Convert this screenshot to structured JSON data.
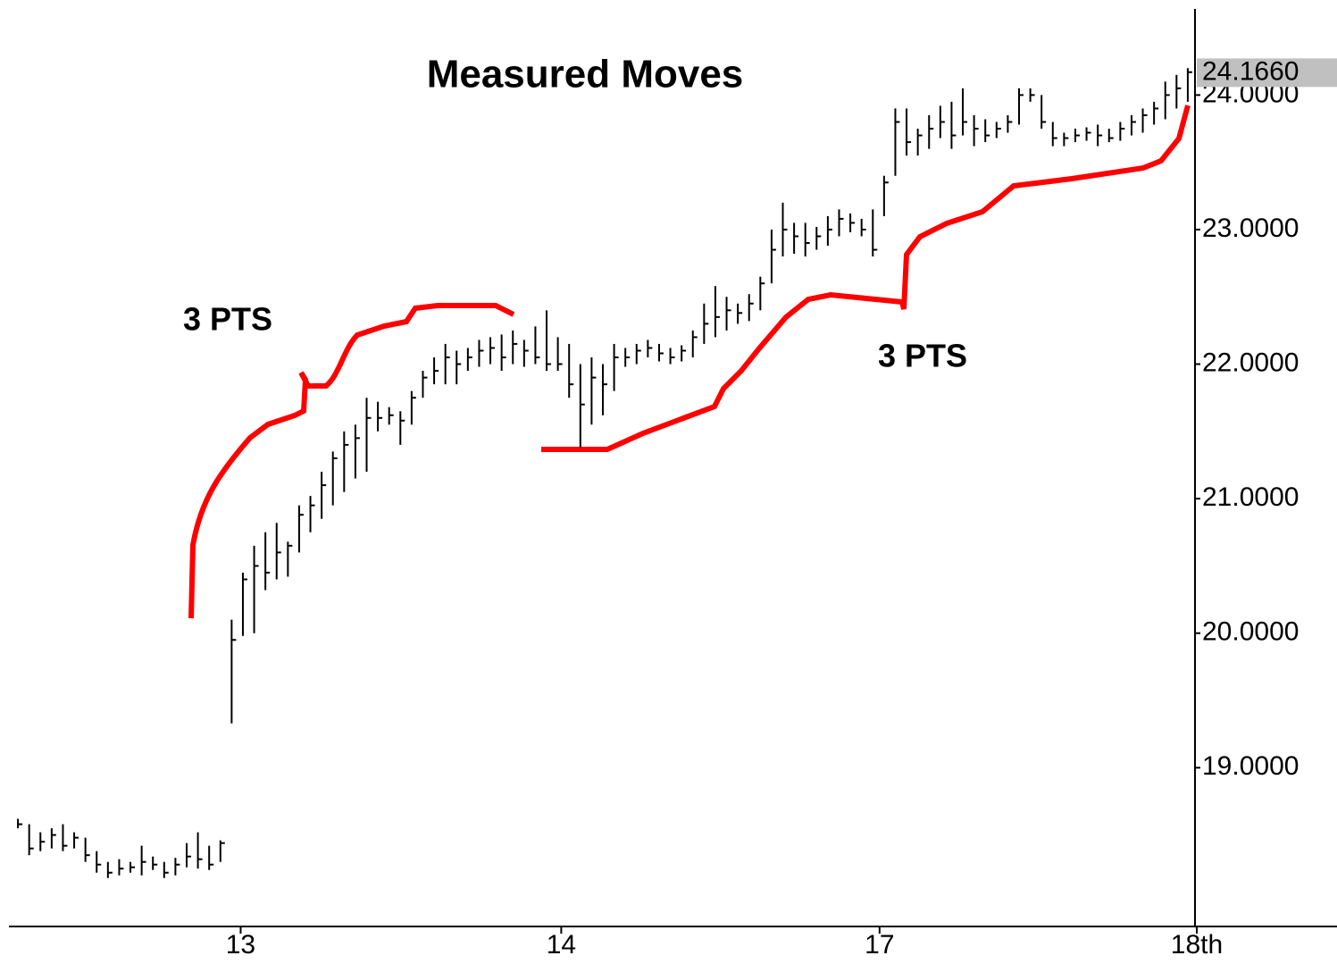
{
  "chart_data": {
    "type": "ohlc",
    "title": "Measured Moves",
    "annotations": [
      "3 PTS",
      "3 PTS"
    ],
    "color": "#000000",
    "low": [
      18.55,
      18.35,
      18.38,
      18.4,
      18.38,
      18.4,
      18.3,
      18.22,
      18.18,
      18.2,
      18.22,
      18.2,
      18.24,
      18.18,
      18.2,
      18.26,
      18.25,
      18.24,
      18.3,
      19.33,
      19.98,
      20.0,
      20.32,
      20.4,
      20.42,
      20.6,
      20.75,
      20.85,
      20.95,
      21.05,
      21.15,
      21.2,
      21.5,
      21.55,
      21.4,
      21.55,
      21.75,
      21.85,
      21.85,
      21.85,
      21.95,
      21.98,
      22.0,
      21.95,
      22.0,
      21.98,
      22.0,
      21.95,
      21.95,
      21.75,
      21.38,
      21.55,
      21.62,
      21.8,
      21.98,
      22.0,
      22.05,
      22.02,
      22.0,
      22.02,
      22.05,
      22.15,
      22.2,
      22.25,
      22.3,
      22.32,
      22.4,
      22.6,
      22.8,
      22.82,
      22.8,
      22.85,
      22.88,
      22.95,
      22.98,
      22.95,
      22.8,
      23.1,
      23.4,
      23.55,
      23.55,
      23.6,
      23.68,
      23.6,
      23.7,
      23.62,
      23.65,
      23.68,
      23.72,
      23.78,
      23.95,
      23.75,
      23.62,
      23.62,
      23.65,
      23.66,
      23.62,
      23.65,
      23.66,
      23.7,
      23.72,
      23.78,
      23.82,
      23.9,
      23.95
    ],
    "high": [
      18.62,
      18.58,
      18.52,
      18.55,
      18.58,
      18.52,
      18.48,
      18.38,
      18.3,
      18.32,
      18.3,
      18.42,
      18.34,
      18.3,
      18.33,
      18.44,
      18.52,
      18.42,
      18.46,
      20.1,
      20.45,
      20.65,
      20.75,
      20.82,
      20.68,
      20.95,
      21.02,
      21.2,
      21.35,
      21.5,
      21.55,
      21.75,
      21.72,
      21.68,
      21.65,
      21.8,
      21.95,
      22.05,
      22.15,
      22.1,
      22.12,
      22.18,
      22.2,
      22.22,
      22.25,
      22.18,
      22.28,
      22.4,
      22.2,
      22.15,
      22.0,
      22.05,
      22.0,
      22.15,
      22.12,
      22.15,
      22.18,
      22.15,
      22.12,
      22.14,
      22.25,
      22.45,
      22.58,
      22.5,
      22.45,
      22.52,
      22.65,
      23.0,
      23.2,
      23.05,
      23.05,
      23.02,
      23.1,
      23.15,
      23.12,
      23.08,
      23.15,
      23.4,
      23.9,
      23.9,
      23.75,
      23.85,
      23.92,
      23.95,
      24.05,
      23.85,
      23.82,
      23.8,
      23.85,
      24.05,
      24.05,
      24.0,
      23.8,
      23.72,
      23.75,
      23.76,
      23.78,
      23.75,
      23.8,
      23.85,
      23.9,
      23.95,
      24.1,
      24.15,
      24.2
    ],
    "close": [
      18.58,
      18.4,
      18.45,
      18.5,
      18.42,
      18.48,
      18.35,
      18.28,
      18.22,
      18.25,
      18.26,
      18.3,
      18.28,
      18.22,
      18.28,
      18.34,
      18.32,
      18.28,
      18.44,
      19.95,
      20.4,
      20.5,
      20.45,
      20.6,
      20.65,
      20.88,
      20.95,
      21.1,
      21.3,
      21.4,
      21.45,
      21.6,
      21.6,
      21.62,
      21.58,
      21.75,
      21.9,
      21.95,
      22.05,
      22.0,
      22.05,
      22.1,
      22.12,
      22.05,
      22.15,
      22.1,
      22.05,
      22.0,
      22.0,
      21.85,
      21.7,
      21.9,
      21.85,
      22.05,
      22.05,
      22.1,
      22.12,
      22.08,
      22.05,
      22.1,
      22.2,
      22.3,
      22.35,
      22.4,
      22.38,
      22.45,
      22.6,
      22.85,
      23.0,
      22.95,
      22.9,
      22.95,
      23.0,
      23.08,
      23.05,
      23.0,
      22.85,
      23.35,
      23.8,
      23.65,
      23.7,
      23.75,
      23.8,
      23.7,
      23.8,
      23.75,
      23.7,
      23.75,
      23.8,
      24.0,
      24.0,
      23.8,
      23.68,
      23.68,
      23.7,
      23.72,
      23.7,
      23.68,
      23.75,
      23.8,
      23.85,
      23.9,
      24.0,
      24.05,
      24.17
    ],
    "last_price": {
      "value": 24.166,
      "label": "24.1660"
    },
    "ylim": [
      17.82,
      24.64
    ],
    "yticks": [
      {
        "value": 24,
        "label": "24.0000"
      },
      {
        "value": 23,
        "label": "23.0000"
      },
      {
        "value": 22,
        "label": "22.0000"
      },
      {
        "value": 21,
        "label": "21.0000"
      },
      {
        "value": 20,
        "label": "20.0000"
      },
      {
        "value": 19,
        "label": "19.0000"
      }
    ],
    "xlim": [
      -0.8,
      104.8
    ],
    "xticks": [
      {
        "value": 19.8,
        "label": "13"
      },
      {
        "value": 48.3,
        "label": "14"
      },
      {
        "value": 76.6,
        "label": "17"
      },
      {
        "value": 104.8,
        "label": "18th"
      }
    ]
  }
}
